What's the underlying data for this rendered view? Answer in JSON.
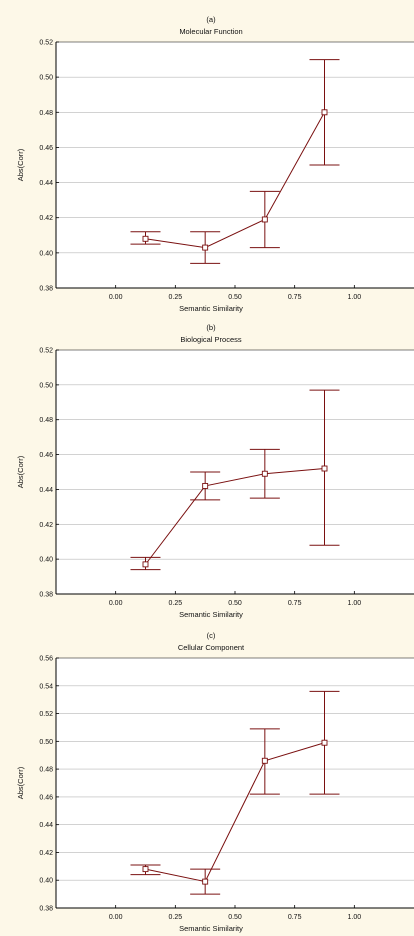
{
  "chart_data": [
    {
      "type": "line",
      "panel_label": "(a)",
      "title": "Molecular Function",
      "xlabel": "Semantic Similarity",
      "ylabel": "Abs(Corr)",
      "xlim": [
        -0.25,
        1.25
      ],
      "ylim": [
        0.38,
        0.52
      ],
      "xticks": [
        "0.00",
        "0.25",
        "0.50",
        "0.75",
        "1.00"
      ],
      "yticks": [
        "0.38",
        "0.40",
        "0.42",
        "0.44",
        "0.46",
        "0.48",
        "0.50",
        "0.52"
      ],
      "grid": "horizontal",
      "series": [
        {
          "x": [
            0.125,
            0.375,
            0.625,
            0.875
          ],
          "y": [
            0.408,
            0.403,
            0.419,
            0.48
          ],
          "err_low": [
            0.405,
            0.394,
            0.403,
            0.45
          ],
          "err_high": [
            0.412,
            0.412,
            0.435,
            0.51
          ]
        }
      ]
    },
    {
      "type": "line",
      "panel_label": "(b)",
      "title": "Biological Process",
      "xlabel": "Semantic Similarity",
      "ylabel": "Abs(Corr)",
      "xlim": [
        -0.25,
        1.25
      ],
      "ylim": [
        0.38,
        0.52
      ],
      "xticks": [
        "0.00",
        "0.25",
        "0.50",
        "0.75",
        "1.00"
      ],
      "yticks": [
        "0.38",
        "0.40",
        "0.42",
        "0.44",
        "0.46",
        "0.48",
        "0.50",
        "0.52"
      ],
      "grid": "horizontal",
      "series": [
        {
          "x": [
            0.125,
            0.375,
            0.625,
            0.875
          ],
          "y": [
            0.397,
            0.442,
            0.449,
            0.452
          ],
          "err_low": [
            0.394,
            0.434,
            0.435,
            0.408
          ],
          "err_high": [
            0.401,
            0.45,
            0.463,
            0.497
          ]
        }
      ]
    },
    {
      "type": "line",
      "panel_label": "(c)",
      "title": "Cellular Component",
      "xlabel": "Semantic Similarity",
      "ylabel": "Abs(Corr)",
      "xlim": [
        -0.25,
        1.25
      ],
      "ylim": [
        0.38,
        0.56
      ],
      "xticks": [
        "0.00",
        "0.25",
        "0.50",
        "0.75",
        "1.00"
      ],
      "yticks": [
        "0.38",
        "0.40",
        "0.42",
        "0.44",
        "0.46",
        "0.48",
        "0.50",
        "0.52",
        "0.54",
        "0.56"
      ],
      "grid": "horizontal",
      "series": [
        {
          "x": [
            0.125,
            0.375,
            0.625,
            0.875
          ],
          "y": [
            0.408,
            0.399,
            0.486,
            0.499
          ],
          "err_low": [
            0.404,
            0.39,
            0.462,
            0.462
          ],
          "err_high": [
            0.411,
            0.408,
            0.509,
            0.536
          ]
        }
      ]
    }
  ],
  "colors": {
    "background": "#fdf8e8",
    "plot_area": "#ffffff",
    "series": "#7a1010",
    "grid": "#b8b8b8",
    "axis": "#000000"
  }
}
